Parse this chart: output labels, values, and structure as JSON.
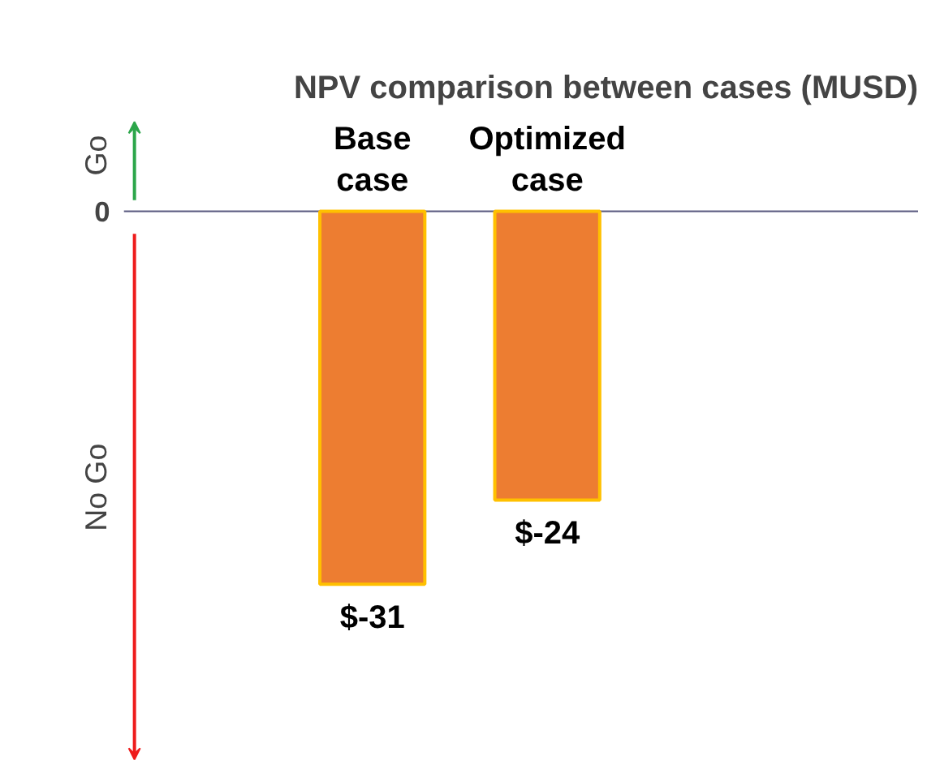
{
  "chart_data": {
    "type": "bar",
    "title": "NPV comparison between cases (MUSD)",
    "categories": [
      "Base case",
      "Optimized case"
    ],
    "values": [
      -31,
      -24
    ],
    "color": "#ed7d31",
    "value_labels": [
      "$-31",
      "$-24"
    ],
    "annotations": [
      "0",
      "Go",
      "No Go"
    ]
  }
}
